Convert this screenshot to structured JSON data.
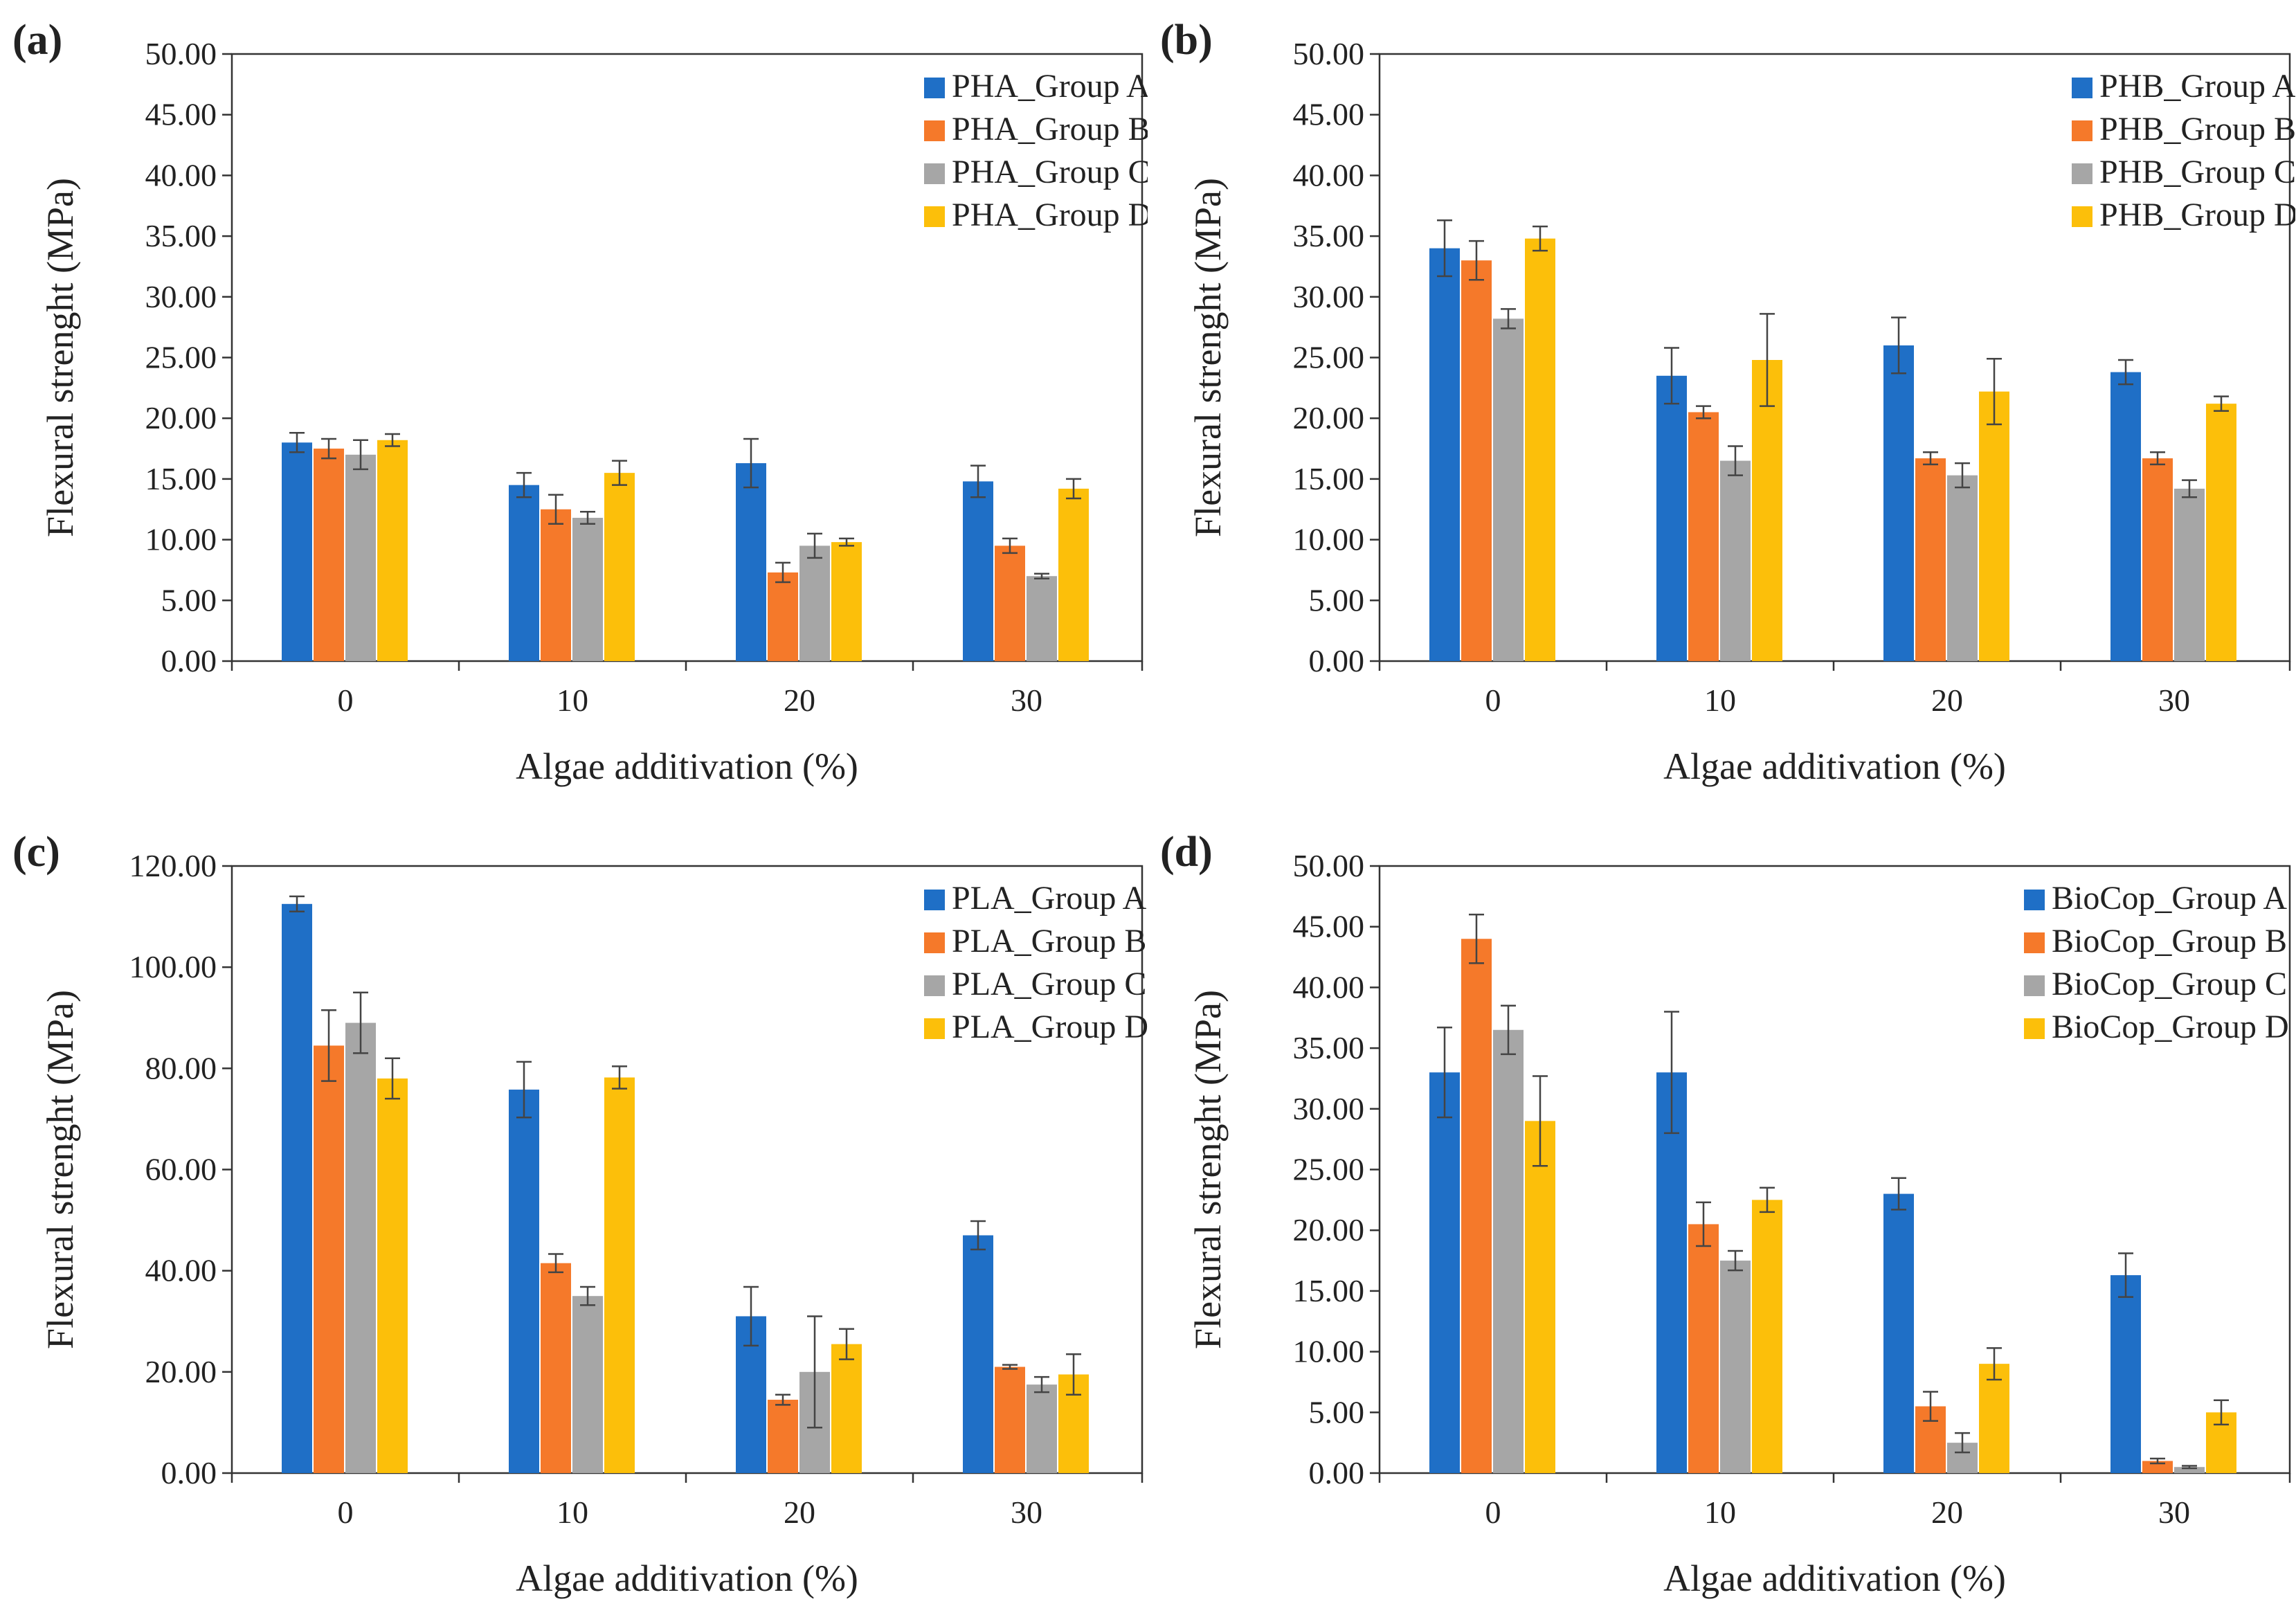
{
  "colors": {
    "group_a": "#1f6fc6",
    "group_b": "#f5792a",
    "group_c": "#a6a6a6",
    "group_d": "#fcbf0a"
  },
  "chart_data": [
    {
      "id": "a",
      "panel_label": "(a)",
      "type": "bar",
      "categories": [
        "0",
        "10",
        "20",
        "30"
      ],
      "xlabel": "Algae additivation (%)",
      "ylabel": "Flexural strenght (MPa)",
      "ylim": [
        0,
        50
      ],
      "ystep": 5,
      "ytick_labels": [
        "0.00",
        "5.00",
        "10.00",
        "15.00",
        "20.00",
        "25.00",
        "30.00",
        "35.00",
        "40.00",
        "45.00",
        "50.00"
      ],
      "grid": false,
      "legend_position": "top-right",
      "series": [
        {
          "name": "PHA_Group A",
          "values": [
            18.0,
            14.5,
            16.3,
            14.8
          ],
          "errors": [
            0.8,
            1.0,
            2.0,
            1.3
          ]
        },
        {
          "name": "PHA_Group B",
          "values": [
            17.5,
            12.5,
            7.3,
            9.5
          ],
          "errors": [
            0.8,
            1.2,
            0.8,
            0.6
          ]
        },
        {
          "name": "PHA_Group C",
          "values": [
            17.0,
            11.8,
            9.5,
            7.0
          ],
          "errors": [
            1.2,
            0.5,
            1.0,
            0.2
          ]
        },
        {
          "name": "PHA_Group D",
          "values": [
            18.2,
            15.5,
            9.8,
            14.2
          ],
          "errors": [
            0.5,
            1.0,
            0.3,
            0.8
          ]
        }
      ]
    },
    {
      "id": "b",
      "panel_label": "(b)",
      "type": "bar",
      "categories": [
        "0",
        "10",
        "20",
        "30"
      ],
      "xlabel": "Algae additivation (%)",
      "ylabel": "Flexural strenght (MPa)",
      "ylim": [
        0,
        50
      ],
      "ystep": 5,
      "ytick_labels": [
        "0.00",
        "5.00",
        "10.00",
        "15.00",
        "20.00",
        "25.00",
        "30.00",
        "35.00",
        "40.00",
        "45.00",
        "50.00"
      ],
      "grid": false,
      "legend_position": "top-right",
      "series": [
        {
          "name": "PHB_Group A",
          "values": [
            34.0,
            23.5,
            26.0,
            23.8
          ],
          "errors": [
            2.3,
            2.3,
            2.3,
            1.0
          ]
        },
        {
          "name": "PHB_Group B",
          "values": [
            33.0,
            20.5,
            16.7,
            16.7
          ],
          "errors": [
            1.6,
            0.5,
            0.5,
            0.5
          ]
        },
        {
          "name": "PHB_Group C",
          "values": [
            28.2,
            16.5,
            15.3,
            14.2
          ],
          "errors": [
            0.8,
            1.2,
            1.0,
            0.7
          ]
        },
        {
          "name": "PHB_Group D",
          "values": [
            34.8,
            24.8,
            22.2,
            21.2
          ],
          "errors": [
            1.0,
            3.8,
            2.7,
            0.6
          ]
        }
      ]
    },
    {
      "id": "c",
      "panel_label": "(c)",
      "type": "bar",
      "categories": [
        "0",
        "10",
        "20",
        "30"
      ],
      "xlabel": "Algae additivation (%)",
      "ylabel": "Flexural strenght (MPa)",
      "ylim": [
        0,
        120
      ],
      "ystep": 20,
      "ytick_labels": [
        "0.00",
        "20.00",
        "40.00",
        "60.00",
        "80.00",
        "100.00",
        "120.00"
      ],
      "grid": false,
      "legend_position": "top-right",
      "series": [
        {
          "name": "PLA_Group A",
          "values": [
            112.5,
            75.8,
            31.0,
            47.0
          ],
          "errors": [
            1.5,
            5.5,
            5.8,
            2.8
          ]
        },
        {
          "name": "PLA_Group B",
          "values": [
            84.5,
            41.5,
            14.5,
            21.0
          ],
          "errors": [
            7.0,
            1.8,
            1.0,
            0.4
          ]
        },
        {
          "name": "PLA_Group C",
          "values": [
            89.0,
            35.0,
            20.0,
            17.5
          ],
          "errors": [
            6.0,
            1.8,
            11.0,
            1.5
          ]
        },
        {
          "name": "PLA_Group D",
          "values": [
            78.0,
            78.2,
            25.5,
            19.5
          ],
          "errors": [
            4.0,
            2.2,
            3.0,
            4.0
          ]
        }
      ]
    },
    {
      "id": "d",
      "panel_label": "(d)",
      "type": "bar",
      "categories": [
        "0",
        "10",
        "20",
        "30"
      ],
      "xlabel": "Algae additivation (%)",
      "ylabel": "Flexural strenght (MPa)",
      "ylim": [
        0,
        50
      ],
      "ystep": 5,
      "ytick_labels": [
        "0.00",
        "5.00",
        "10.00",
        "15.00",
        "20.00",
        "25.00",
        "30.00",
        "35.00",
        "40.00",
        "45.00",
        "50.00"
      ],
      "grid": false,
      "legend_position": "top-right",
      "series": [
        {
          "name": "BioCop_Group A",
          "values": [
            33.0,
            33.0,
            23.0,
            16.3
          ],
          "errors": [
            3.7,
            5.0,
            1.3,
            1.8
          ]
        },
        {
          "name": "BioCop_Group B",
          "values": [
            44.0,
            20.5,
            5.5,
            1.0
          ],
          "errors": [
            2.0,
            1.8,
            1.2,
            0.2
          ]
        },
        {
          "name": "BioCop_Group C",
          "values": [
            36.5,
            17.5,
            2.5,
            0.5
          ],
          "errors": [
            2.0,
            0.8,
            0.8,
            0.1
          ]
        },
        {
          "name": "BioCop_Group D",
          "values": [
            29.0,
            22.5,
            9.0,
            5.0
          ],
          "errors": [
            3.7,
            1.0,
            1.3,
            1.0
          ]
        }
      ]
    }
  ]
}
